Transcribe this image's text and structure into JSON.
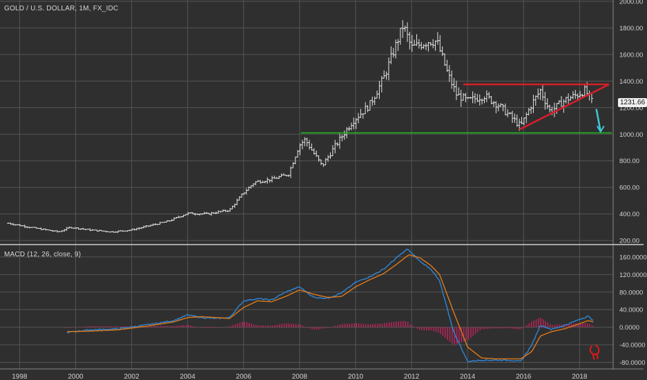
{
  "symbol_title": "GOLD / U.S. DOLLAR, 1M, FX_IDC",
  "macd_title": "MACD (12, 26, close, 9)",
  "last_price_label": "1231.66",
  "chart_data": [
    {
      "type": "ohlc",
      "title": "GOLD / U.S. DOLLAR, 1M, FX_IDC",
      "ylim": [
        180,
        2010
      ],
      "y_ticks": [
        "200.00",
        "400.00",
        "600.00",
        "800.00",
        "1000.00",
        "1200.00",
        "1400.00",
        "1600.00",
        "1800.00",
        "2000.00"
      ],
      "x_ticks": [
        "1998",
        "2000",
        "2002",
        "2004",
        "2006",
        "2008",
        "2010",
        "2012",
        "2014",
        "2016",
        "2018"
      ],
      "xlim": [
        1997.3,
        2019.2
      ],
      "grid": true,
      "price_anchors": [
        [
          1997.6,
          330
        ],
        [
          1998.5,
          295
        ],
        [
          1999.4,
          265
        ],
        [
          1999.8,
          300
        ],
        [
          2000.5,
          280
        ],
        [
          2001.3,
          265
        ],
        [
          2002.0,
          280
        ],
        [
          2002.6,
          310
        ],
        [
          2003.3,
          345
        ],
        [
          2004.0,
          405
        ],
        [
          2004.7,
          400
        ],
        [
          2005.5,
          430
        ],
        [
          2006.0,
          560
        ],
        [
          2006.4,
          640
        ],
        [
          2007.0,
          660
        ],
        [
          2007.6,
          700
        ],
        [
          2008.0,
          920
        ],
        [
          2008.2,
          960
        ],
        [
          2008.8,
          760
        ],
        [
          2009.3,
          920
        ],
        [
          2009.9,
          1100
        ],
        [
          2010.5,
          1220
        ],
        [
          2011.0,
          1420
        ],
        [
          2011.7,
          1820
        ],
        [
          2012.0,
          1650
        ],
        [
          2012.6,
          1700
        ],
        [
          2012.9,
          1700
        ],
        [
          2013.3,
          1450
        ],
        [
          2013.6,
          1300
        ],
        [
          2014.0,
          1250
        ],
        [
          2014.6,
          1290
        ],
        [
          2015.1,
          1220
        ],
        [
          2015.6,
          1120
        ],
        [
          2015.9,
          1060
        ],
        [
          2016.3,
          1230
        ],
        [
          2016.6,
          1330
        ],
        [
          2016.95,
          1170
        ],
        [
          2017.5,
          1260
        ],
        [
          2017.95,
          1300
        ],
        [
          2018.2,
          1330
        ],
        [
          2018.45,
          1240
        ]
      ],
      "trendlines": [
        {
          "name": "resistance",
          "color": "#d81f26",
          "points": [
            [
              2013.85,
              1375
            ],
            [
              2019.05,
              1375
            ]
          ]
        },
        {
          "name": "rising-support",
          "color": "#d81f26",
          "points": [
            [
              2015.85,
              1035
            ],
            [
              2019.05,
              1375
            ]
          ]
        },
        {
          "name": "support",
          "color": "#1fc01f",
          "points": [
            [
              2008.05,
              1010
            ],
            [
              2019.15,
              1010
            ]
          ]
        },
        {
          "name": "projection-arrow",
          "color": "#3fc8d8",
          "points": [
            [
              2018.6,
              1190
            ],
            [
              2018.75,
              1020
            ]
          ]
        }
      ],
      "last_price": 1231.66
    },
    {
      "type": "line",
      "title": "MACD (12, 26, close, 9)",
      "ylim": [
        -95,
        185
      ],
      "y_ticks": [
        "-80.0000",
        "-40.0000",
        "0.0000",
        "40.0000",
        "80.0000",
        "120.0000",
        "160.0000"
      ],
      "grid": true,
      "series": [
        {
          "color": "#2f86d6",
          "points": [
            [
              1999.7,
              -12
            ],
            [
              2000.5,
              -6
            ],
            [
              2001.5,
              -4
            ],
            [
              2002.5,
              5
            ],
            [
              2003.5,
              15
            ],
            [
              2004.0,
              28
            ],
            [
              2004.5,
              22
            ],
            [
              2005.0,
              20
            ],
            [
              2005.5,
              22
            ],
            [
              2006.0,
              60
            ],
            [
              2006.5,
              65
            ],
            [
              2007.0,
              62
            ],
            [
              2007.5,
              80
            ],
            [
              2008.0,
              92
            ],
            [
              2008.5,
              68
            ],
            [
              2009.0,
              66
            ],
            [
              2009.5,
              78
            ],
            [
              2010.0,
              102
            ],
            [
              2010.5,
              115
            ],
            [
              2011.0,
              132
            ],
            [
              2011.5,
              160
            ],
            [
              2011.85,
              178
            ],
            [
              2012.3,
              150
            ],
            [
              2012.7,
              132
            ],
            [
              2013.0,
              105
            ],
            [
              2013.5,
              -10
            ],
            [
              2014.0,
              -78
            ],
            [
              2014.5,
              -75
            ],
            [
              2015.0,
              -75
            ],
            [
              2015.5,
              -75
            ],
            [
              2015.9,
              -78
            ],
            [
              2016.3,
              -40
            ],
            [
              2016.6,
              5
            ],
            [
              2017.0,
              -5
            ],
            [
              2017.5,
              5
            ],
            [
              2018.0,
              18
            ],
            [
              2018.3,
              25
            ],
            [
              2018.5,
              15
            ]
          ]
        },
        {
          "color": "#e07a1a",
          "points": [
            [
              1999.7,
              -10
            ],
            [
              2000.5,
              -9
            ],
            [
              2001.5,
              -6
            ],
            [
              2002.5,
              2
            ],
            [
              2003.5,
              12
            ],
            [
              2004.0,
              22
            ],
            [
              2004.5,
              24
            ],
            [
              2005.0,
              22
            ],
            [
              2005.5,
              20
            ],
            [
              2006.0,
              45
            ],
            [
              2006.5,
              60
            ],
            [
              2007.0,
              58
            ],
            [
              2007.5,
              70
            ],
            [
              2008.0,
              85
            ],
            [
              2008.5,
              75
            ],
            [
              2009.0,
              68
            ],
            [
              2009.5,
              70
            ],
            [
              2010.0,
              92
            ],
            [
              2010.5,
              108
            ],
            [
              2011.0,
              122
            ],
            [
              2011.5,
              145
            ],
            [
              2011.9,
              165
            ],
            [
              2012.3,
              158
            ],
            [
              2012.7,
              140
            ],
            [
              2013.0,
              120
            ],
            [
              2013.5,
              35
            ],
            [
              2014.0,
              -45
            ],
            [
              2014.5,
              -70
            ],
            [
              2015.0,
              -72
            ],
            [
              2015.5,
              -72
            ],
            [
              2015.9,
              -72
            ],
            [
              2016.3,
              -55
            ],
            [
              2016.6,
              -20
            ],
            [
              2017.0,
              -10
            ],
            [
              2017.5,
              -3
            ],
            [
              2018.0,
              8
            ],
            [
              2018.3,
              15
            ],
            [
              2018.5,
              12
            ]
          ]
        }
      ],
      "histogram_color": "#b4255a",
      "annotation_color": "#e01818"
    }
  ],
  "colors": {
    "background": "#2f2f2f",
    "grid": "#565656",
    "bars": "#e6e6e6",
    "axis_text": "#d2d2d2",
    "separator": "#cfcfcf"
  }
}
